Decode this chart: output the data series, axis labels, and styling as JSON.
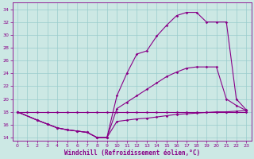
{
  "xlabel": "Windchill (Refroidissement éolien,°C)",
  "x_ticks": [
    0,
    1,
    2,
    3,
    4,
    5,
    6,
    7,
    8,
    9,
    10,
    11,
    12,
    13,
    14,
    15,
    16,
    17,
    18,
    19,
    20,
    21,
    22,
    23
  ],
  "ylim": [
    13.5,
    35.0
  ],
  "xlim": [
    -0.5,
    23.5
  ],
  "yticks": [
    14,
    16,
    18,
    20,
    22,
    24,
    26,
    28,
    30,
    32,
    34
  ],
  "bg_color": "#cce8e4",
  "line_color": "#880088",
  "grid_color": "#99cccc",
  "curve1_x": [
    0,
    1,
    2,
    3,
    4,
    5,
    6,
    7,
    8,
    9,
    10,
    11,
    12,
    13,
    14,
    15,
    16,
    17,
    18,
    19,
    20,
    21,
    22,
    23
  ],
  "curve1_y": [
    18.0,
    18.0,
    18.0,
    18.0,
    18.0,
    18.0,
    18.0,
    18.0,
    18.0,
    18.0,
    18.0,
    18.0,
    18.0,
    18.0,
    18.0,
    18.0,
    18.0,
    18.0,
    18.0,
    18.0,
    18.0,
    18.0,
    18.0,
    18.0
  ],
  "curve2_x": [
    0,
    2,
    3,
    4,
    5,
    6,
    7,
    8,
    9,
    10,
    11,
    12,
    13,
    14,
    15,
    16,
    17,
    18,
    19,
    20,
    21,
    22,
    23
  ],
  "curve2_y": [
    18.0,
    16.7,
    16.1,
    15.5,
    15.2,
    15.0,
    14.8,
    14.0,
    14.0,
    16.5,
    16.7,
    16.9,
    17.0,
    17.2,
    17.4,
    17.6,
    17.7,
    17.8,
    17.9,
    18.0,
    18.0,
    18.1,
    18.2
  ],
  "curve3_x": [
    0,
    2,
    3,
    4,
    5,
    6,
    7,
    8,
    9,
    10,
    11,
    12,
    13,
    14,
    15,
    16,
    17,
    18,
    19,
    20,
    21,
    22,
    23
  ],
  "curve3_y": [
    18.0,
    16.7,
    16.1,
    15.5,
    15.2,
    15.0,
    14.8,
    14.0,
    14.0,
    18.5,
    19.5,
    20.5,
    21.5,
    22.5,
    23.5,
    24.2,
    24.8,
    25.0,
    25.0,
    25.0,
    20.0,
    19.0,
    18.2
  ],
  "curve4_x": [
    0,
    2,
    3,
    4,
    5,
    6,
    7,
    8,
    9,
    10,
    11,
    12,
    13,
    14,
    15,
    16,
    17,
    18,
    19,
    20,
    21,
    22,
    23
  ],
  "curve4_y": [
    18.0,
    16.7,
    16.1,
    15.5,
    15.2,
    15.0,
    14.8,
    14.0,
    14.0,
    20.5,
    24.0,
    27.0,
    27.5,
    29.8,
    31.5,
    33.0,
    33.5,
    33.5,
    32.0,
    32.0,
    32.0,
    20.0,
    18.3
  ]
}
